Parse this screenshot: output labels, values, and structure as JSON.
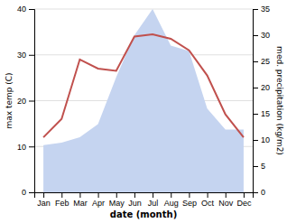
{
  "chart_data": {
    "type": "line",
    "xlabel": "date (month)",
    "ylabel": "max temp (C)",
    "y2label": "med. precipitation (kg/m2)",
    "categories": [
      "Jan",
      "Feb",
      "Mar",
      "Apr",
      "May",
      "Jun",
      "Jul",
      "Aug",
      "Sep",
      "Oct",
      "Nov",
      "Dec"
    ],
    "series": [
      {
        "type": "area",
        "axis": "y2",
        "color": "#c5d4f0",
        "values": [
          9.0,
          9.5,
          10.5,
          13.0,
          22.0,
          30.0,
          35.0,
          28.0,
          27.0,
          16.0,
          12.0,
          12.0
        ]
      },
      {
        "type": "line",
        "color": "#c0504d",
        "values": [
          12.0,
          16.0,
          29.0,
          27.0,
          26.5,
          34.0,
          34.5,
          33.5,
          31.0,
          25.5,
          17.0,
          12.0
        ]
      }
    ],
    "ylim": [
      0,
      40
    ],
    "yticks": [
      0,
      10,
      20,
      30,
      40
    ],
    "y2lim": [
      0,
      35
    ],
    "y2ticks": [
      0,
      5,
      10,
      15,
      20,
      25,
      30,
      35
    ],
    "grid": true
  }
}
